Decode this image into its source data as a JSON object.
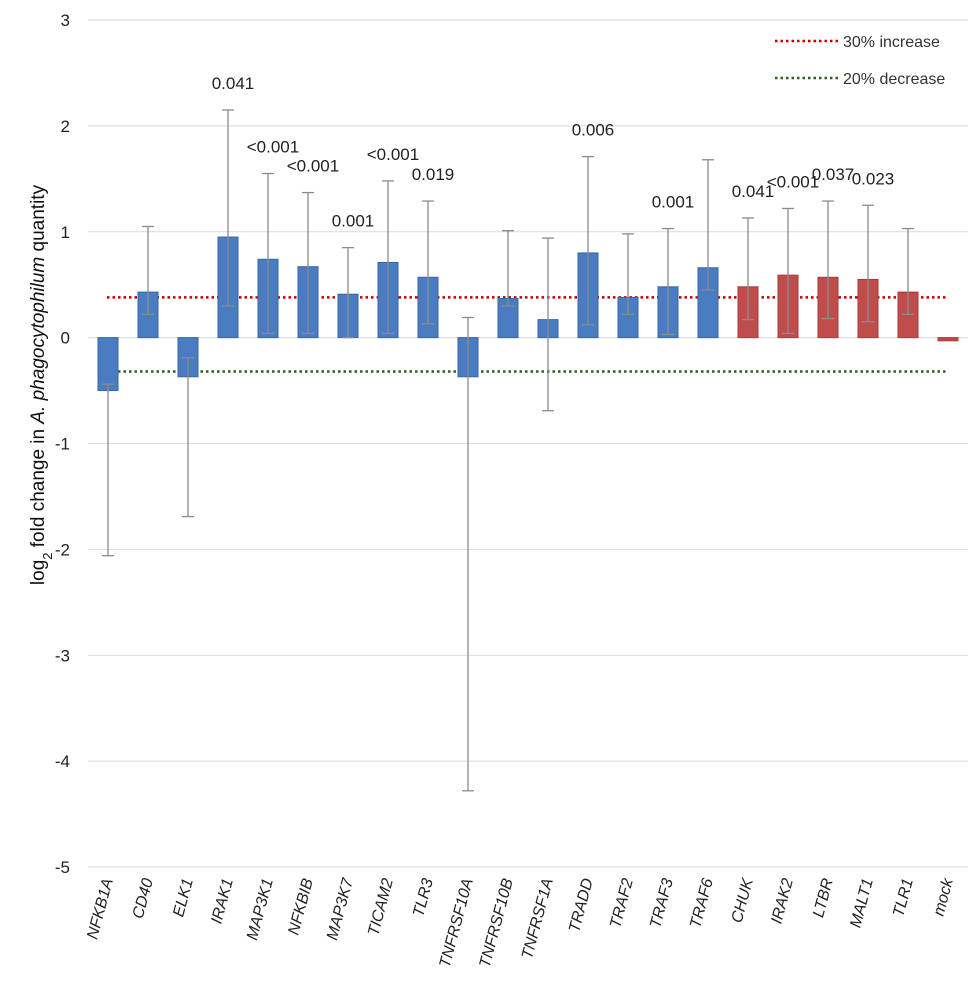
{
  "chart_data": {
    "type": "bar",
    "title": "",
    "xlabel": "",
    "ylabel": {
      "prefix": "log",
      "subscript": "2",
      "middle": " fold change in ",
      "italic": "A. phagocytophilum",
      "suffix": " quantity"
    },
    "ylim": [
      -5,
      3
    ],
    "yticks": [
      3,
      2,
      1,
      0,
      -1,
      -2,
      -3,
      -4,
      -5
    ],
    "grid": true,
    "colors": {
      "blue": "#4a7cc1",
      "red": "#c14c4c",
      "error": "#8c8c8c",
      "grid": "#d9d9d9",
      "increase_line": "#c00000",
      "decrease_line": "#2e5e1a"
    },
    "bars": [
      {
        "category": "NFKB1A",
        "value": -0.5,
        "err_low": -2.06,
        "err_high": -0.44,
        "color": "blue",
        "label": ""
      },
      {
        "category": "CD40",
        "value": 0.43,
        "err_low": 0.22,
        "err_high": 1.05,
        "color": "blue",
        "label": ""
      },
      {
        "category": "ELK1",
        "value": -0.37,
        "err_low": -1.69,
        "err_high": -0.19,
        "color": "blue",
        "label": ""
      },
      {
        "category": "IRAK1",
        "value": 0.95,
        "err_low": 0.3,
        "err_high": 2.15,
        "color": "blue",
        "label": "0.041"
      },
      {
        "category": "MAP3K1",
        "value": 0.74,
        "err_low": 0.04,
        "err_high": 1.55,
        "color": "blue",
        "label": "<0.001"
      },
      {
        "category": "NFKBIB",
        "value": 0.67,
        "err_low": 0.04,
        "err_high": 1.37,
        "color": "blue",
        "label": "<0.001"
      },
      {
        "category": "MAP3K7",
        "value": 0.41,
        "err_low": 0.0,
        "err_high": 0.85,
        "color": "blue",
        "label": "0.001"
      },
      {
        "category": "TICAM2",
        "value": 0.71,
        "err_low": 0.04,
        "err_high": 1.48,
        "color": "blue",
        "label": "<0.001"
      },
      {
        "category": "TLR3",
        "value": 0.57,
        "err_low": 0.13,
        "err_high": 1.29,
        "color": "blue",
        "label": "0.019"
      },
      {
        "category": "TNFRSF10A",
        "value": -0.37,
        "err_low": -4.28,
        "err_high": 0.19,
        "color": "blue",
        "label": ""
      },
      {
        "category": "TNFRSF10B",
        "value": 0.37,
        "err_low": 0.3,
        "err_high": 1.01,
        "color": "blue",
        "label": ""
      },
      {
        "category": "TNFRSF1A",
        "value": 0.17,
        "err_low": -0.69,
        "err_high": 0.94,
        "color": "blue",
        "label": ""
      },
      {
        "category": "TRADD",
        "value": 0.8,
        "err_low": 0.12,
        "err_high": 1.71,
        "color": "blue",
        "label": "0.006"
      },
      {
        "category": "TRAF2",
        "value": 0.38,
        "err_low": 0.22,
        "err_high": 0.98,
        "color": "blue",
        "label": ""
      },
      {
        "category": "TRAF3",
        "value": 0.48,
        "err_low": 0.03,
        "err_high": 1.03,
        "color": "blue",
        "label": "0.001"
      },
      {
        "category": "TRAF6",
        "value": 0.66,
        "err_low": 0.45,
        "err_high": 1.68,
        "color": "blue",
        "label": ""
      },
      {
        "category": "CHUK",
        "value": 0.48,
        "err_low": 0.17,
        "err_high": 1.13,
        "color": "red",
        "label": "0.041"
      },
      {
        "category": "IRAK2",
        "value": 0.59,
        "err_low": 0.04,
        "err_high": 1.22,
        "color": "red",
        "label": "<0.001"
      },
      {
        "category": "LTBR",
        "value": 0.57,
        "err_low": 0.18,
        "err_high": 1.29,
        "color": "red",
        "label": "0.037"
      },
      {
        "category": "MALT1",
        "value": 0.55,
        "err_low": 0.15,
        "err_high": 1.25,
        "color": "red",
        "label": "0.023"
      },
      {
        "category": "TLR1",
        "value": 0.43,
        "err_low": 0.22,
        "err_high": 1.03,
        "color": "red",
        "label": ""
      },
      {
        "category": "mock",
        "value": -0.03,
        "err_low": null,
        "err_high": null,
        "color": "red",
        "label": ""
      }
    ],
    "reference_lines": [
      {
        "name": "30% increase",
        "value": 0.38,
        "color": "increase_line"
      },
      {
        "name": "20% decrease",
        "value": -0.32,
        "color": "decrease_line"
      }
    ],
    "legend": {
      "position": "top-right"
    }
  }
}
